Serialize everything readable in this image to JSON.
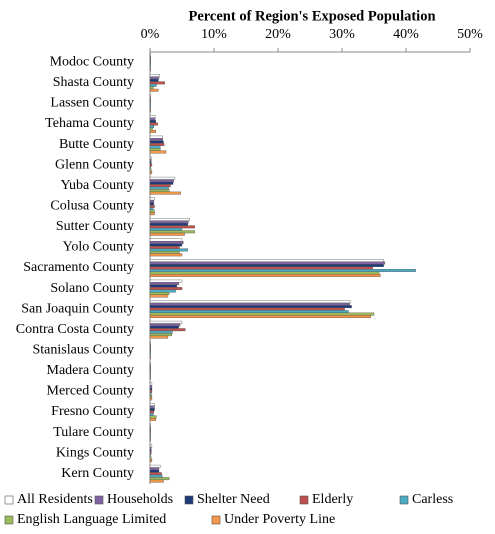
{
  "chart_data": {
    "type": "hbar",
    "title": "Percent of Region's Exposed Population",
    "categories": [
      "Modoc County",
      "Shasta County",
      "Lassen County",
      "Tehama County",
      "Butte County",
      "Glenn County",
      "Yuba County",
      "Colusa County",
      "Sutter County",
      "Yolo County",
      "Sacramento County",
      "Solano County",
      "San Joaquin County",
      "Contra Costa County",
      "Stanislaus County",
      "Madera County",
      "Merced County",
      "Fresno County",
      "Tulare County",
      "Kings County",
      "Kern County"
    ],
    "series": [
      {
        "name": "All Residents",
        "color": "#ffffff",
        "values": [
          0.1,
          1.5,
          0.1,
          0.8,
          2.0,
          0.2,
          3.9,
          0.7,
          6.2,
          5.0,
          36.5,
          5.0,
          31.3,
          5.0,
          0.1,
          0.1,
          0.3,
          0.7,
          0.1,
          0.3,
          1.6
        ]
      },
      {
        "name": "Households",
        "color": "#8064a2",
        "values": [
          0.1,
          1.4,
          0.1,
          0.8,
          2.0,
          0.2,
          3.7,
          0.6,
          6.0,
          5.2,
          36.7,
          4.5,
          31.2,
          4.7,
          0.1,
          0.1,
          0.3,
          0.7,
          0.1,
          0.2,
          1.4
        ]
      },
      {
        "name": "Shelter Need",
        "color": "#1f3a7a",
        "values": [
          0.1,
          1.3,
          0.1,
          0.9,
          2.1,
          0.2,
          3.6,
          0.6,
          5.9,
          5.0,
          36.5,
          4.2,
          31.5,
          4.5,
          0.1,
          0.1,
          0.3,
          0.7,
          0.1,
          0.2,
          1.4
        ]
      },
      {
        "name": "Elderly",
        "color": "#c0504d",
        "values": [
          0.1,
          2.3,
          0.1,
          1.2,
          2.2,
          0.3,
          3.2,
          0.7,
          7.0,
          4.6,
          34.8,
          5.0,
          30.4,
          5.5,
          0.1,
          0.1,
          0.3,
          0.6,
          0.1,
          0.2,
          1.8
        ]
      },
      {
        "name": "Carless",
        "color": "#4bacc6",
        "values": [
          0.1,
          1.0,
          0.1,
          0.6,
          1.6,
          0.1,
          2.9,
          0.5,
          5.0,
          5.9,
          41.5,
          4.0,
          31.0,
          3.5,
          0.1,
          0.1,
          0.2,
          0.5,
          0.1,
          0.1,
          1.9
        ]
      },
      {
        "name": "English Language Limited",
        "color": "#9bbb59",
        "values": [
          0.1,
          0.5,
          0.1,
          0.4,
          1.6,
          0.2,
          3.0,
          0.7,
          7.0,
          4.6,
          35.8,
          3.0,
          35.0,
          3.4,
          0.1,
          0.1,
          0.3,
          1.0,
          0.1,
          0.2,
          3.0
        ]
      },
      {
        "name": "Under Poverty Line",
        "color": "#f79646",
        "values": [
          0.1,
          1.3,
          0.1,
          0.9,
          2.5,
          0.3,
          4.8,
          0.7,
          5.4,
          5.0,
          36.0,
          2.8,
          34.5,
          2.8,
          0.1,
          0.1,
          0.3,
          0.9,
          0.1,
          0.3,
          2.1
        ]
      }
    ],
    "xlim": [
      0,
      50
    ],
    "xticks": [
      {
        "value": 0,
        "label": "0%"
      },
      {
        "value": 10,
        "label": "10%"
      },
      {
        "value": 20,
        "label": "20%"
      },
      {
        "value": 30,
        "label": "30%"
      },
      {
        "value": 40,
        "label": "40%"
      },
      {
        "value": 50,
        "label": "50%"
      }
    ],
    "legend": "bottom"
  }
}
